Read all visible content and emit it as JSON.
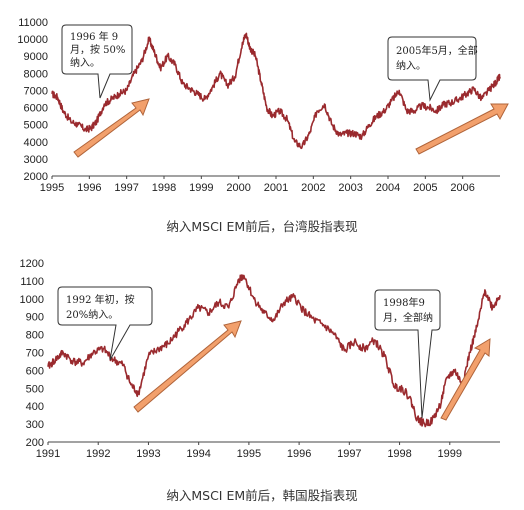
{
  "chart_data": [
    {
      "type": "line",
      "title": "纳入MSCI EM前后，台湾股指表现",
      "ylim": [
        2000,
        11000
      ],
      "yticks": [
        2000,
        3000,
        4000,
        5000,
        6000,
        7000,
        8000,
        9000,
        10000,
        11000
      ],
      "xlim": [
        1995,
        2007
      ],
      "xticks": [
        1995,
        1996,
        1997,
        1998,
        1999,
        2000,
        2001,
        2002,
        2003,
        2004,
        2005,
        2006
      ],
      "grid": false,
      "series": [
        {
          "x": [
            1995.0,
            1995.15,
            1995.3,
            1995.5,
            1995.7,
            1995.9,
            1996.05,
            1996.2,
            1996.4,
            1996.6,
            1996.8,
            1997.0,
            1997.2,
            1997.4,
            1997.6,
            1997.75,
            1997.9,
            1998.1,
            1998.3,
            1998.5,
            1998.7,
            1998.9,
            1999.1,
            1999.3,
            1999.5,
            1999.7,
            1999.9,
            2000.1,
            2000.2,
            2000.3,
            2000.45,
            2000.6,
            2000.75,
            2000.9,
            2001.1,
            2001.3,
            2001.5,
            2001.7,
            2001.9,
            2002.1,
            2002.3,
            2002.5,
            2002.7,
            2002.9,
            2003.1,
            2003.3,
            2003.5,
            2003.7,
            2003.9,
            2004.1,
            2004.3,
            2004.5,
            2004.7,
            2004.9,
            2005.1,
            2005.3,
            2005.5,
            2005.7,
            2005.9,
            2006.1,
            2006.3,
            2006.5,
            2006.7,
            2006.9,
            2007.0
          ],
          "values": [
            6800,
            6600,
            5800,
            5200,
            5000,
            4700,
            4800,
            5200,
            6200,
            6500,
            6800,
            7000,
            8000,
            8700,
            10000,
            9200,
            8300,
            9000,
            8500,
            7400,
            7100,
            6800,
            6500,
            7200,
            8000,
            7300,
            7800,
            9800,
            10300,
            9500,
            9000,
            7500,
            6000,
            5500,
            5800,
            5300,
            4000,
            3700,
            4500,
            5800,
            6200,
            5000,
            4400,
            4500,
            4500,
            4300,
            5000,
            5500,
            5800,
            6400,
            7000,
            5800,
            5800,
            6100,
            6000,
            5800,
            6200,
            6300,
            6500,
            6800,
            7100,
            6500,
            7000,
            7500,
            7800
          ]
        }
      ],
      "annotations": [
        {
          "text_lines": [
            "1996 年 9",
            "月，按 50%",
            "纳入。"
          ]
        },
        {
          "text_lines": [
            "2005年5月，全部",
            "纳入。"
          ]
        }
      ]
    },
    {
      "type": "line",
      "title": "纳入MSCI EM前后，韩国股指表现",
      "ylim": [
        200,
        1200
      ],
      "yticks": [
        200,
        300,
        400,
        500,
        600,
        700,
        800,
        900,
        1000,
        1100,
        1200
      ],
      "xlim": [
        1991,
        2000
      ],
      "xticks": [
        1991,
        1992,
        1993,
        1994,
        1995,
        1996,
        1997,
        1998,
        1999
      ],
      "grid": false,
      "series": [
        {
          "x": [
            1991.0,
            1991.15,
            1991.3,
            1991.5,
            1991.7,
            1991.9,
            1992.1,
            1992.3,
            1992.5,
            1992.65,
            1992.8,
            1993.0,
            1993.2,
            1993.4,
            1993.6,
            1993.8,
            1994.0,
            1994.2,
            1994.4,
            1994.6,
            1994.8,
            1994.9,
            1995.1,
            1995.3,
            1995.5,
            1995.7,
            1995.9,
            1996.1,
            1996.3,
            1996.5,
            1996.7,
            1996.9,
            1997.1,
            1997.3,
            1997.5,
            1997.7,
            1997.9,
            1998.05,
            1998.2,
            1998.35,
            1998.5,
            1998.65,
            1998.8,
            1998.95,
            1999.1,
            1999.25,
            1999.4,
            1999.55,
            1999.7,
            1999.85,
            2000.0
          ],
          "values": [
            620,
            660,
            700,
            650,
            640,
            700,
            720,
            660,
            630,
            520,
            470,
            680,
            720,
            750,
            820,
            880,
            950,
            920,
            980,
            950,
            1110,
            1130,
            1000,
            920,
            880,
            980,
            1010,
            930,
            880,
            850,
            800,
            710,
            760,
            720,
            770,
            680,
            510,
            500,
            450,
            330,
            300,
            320,
            400,
            560,
            600,
            520,
            700,
            850,
            1050,
            950,
            1020
          ]
        }
      ],
      "annotations": [
        {
          "text_lines": [
            "1992 年初，按",
            "20%纳入。"
          ]
        },
        {
          "text_lines": [
            "1998年9",
            "月，全部纳"
          ]
        }
      ]
    }
  ]
}
